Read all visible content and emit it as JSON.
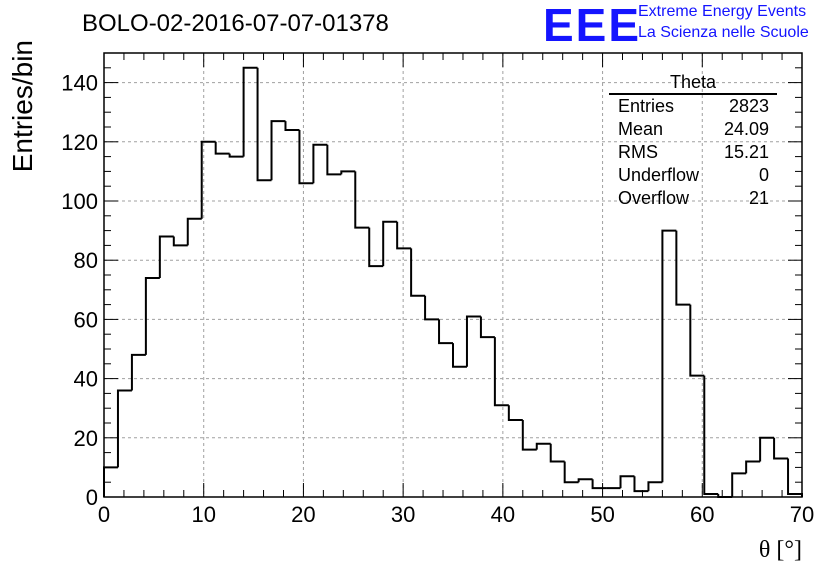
{
  "header": {
    "title": "BOLO-02-2016-07-07-01378"
  },
  "logo": {
    "mark": "EEE",
    "line1": "Extreme Energy Events",
    "line2": "La Scienza nelle Scuole",
    "color": "#1414ff"
  },
  "stats_box": {
    "name": "Theta",
    "rows": [
      {
        "label": "Entries",
        "value": "2823"
      },
      {
        "label": "Mean",
        "value": "24.09"
      },
      {
        "label": "RMS",
        "value": "15.21"
      },
      {
        "label": "Underflow",
        "value": "0"
      },
      {
        "label": "Overflow",
        "value": "21"
      }
    ]
  },
  "chart_data": {
    "type": "bar",
    "histogram": true,
    "title": "BOLO-02-2016-07-07-01378",
    "xlabel": "θ [°]",
    "ylabel": "Entries/bin",
    "xlim": [
      0,
      70
    ],
    "ylim": [
      0,
      150
    ],
    "x_ticks": [
      0,
      10,
      20,
      30,
      40,
      50,
      60,
      70
    ],
    "y_ticks": [
      0,
      20,
      40,
      60,
      80,
      100,
      120,
      140
    ],
    "grid": true,
    "bin_width": 1.4,
    "values": [
      10,
      36,
      48,
      74,
      88,
      85,
      94,
      120,
      116,
      115,
      145,
      107,
      127,
      124,
      106,
      119,
      109,
      110,
      91,
      78,
      93,
      84,
      68,
      60,
      52,
      44,
      61,
      54,
      31,
      26,
      16,
      18,
      12,
      5,
      6,
      3,
      3,
      7,
      2,
      5,
      90,
      65,
      41,
      1,
      0,
      8,
      12,
      20,
      13,
      1
    ]
  }
}
